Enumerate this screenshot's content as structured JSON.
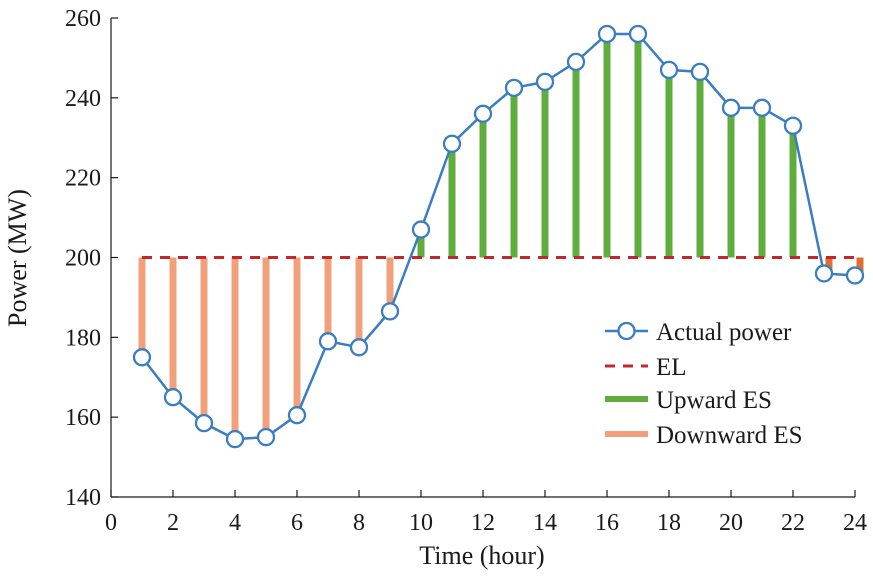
{
  "chart_data": {
    "type": "line",
    "xlabel": "Time (hour)",
    "ylabel": "Power (MW)",
    "xlim": [
      0,
      24
    ],
    "ylim": [
      140,
      260
    ],
    "xticks": [
      0,
      2,
      4,
      6,
      8,
      10,
      12,
      14,
      16,
      18,
      20,
      22,
      24
    ],
    "yticks": [
      140,
      160,
      180,
      200,
      220,
      240,
      260
    ],
    "grid": false,
    "legend_position": "right",
    "x": [
      1,
      2,
      3,
      4,
      5,
      6,
      7,
      8,
      9,
      10,
      11,
      12,
      13,
      14,
      15,
      16,
      17,
      18,
      19,
      20,
      21,
      22,
      23,
      24
    ],
    "series": [
      {
        "name": "Actual power",
        "kind": "line-markers",
        "color": "#3a7dc0",
        "values": [
          175,
          165,
          158.5,
          154.5,
          155,
          160.5,
          179,
          177.5,
          186.5,
          207,
          228.5,
          236,
          242.5,
          244,
          249,
          256,
          256,
          247,
          246.5,
          237.5,
          237.5,
          233,
          196,
          195.5
        ]
      },
      {
        "name": "EL",
        "kind": "dashed-line",
        "color": "#c0282d",
        "value": 200
      },
      {
        "name": "Upward ES",
        "kind": "bar",
        "color": "#5fad3c"
      },
      {
        "name": "Downward ES",
        "kind": "bar",
        "color": "#f0a07a"
      }
    ],
    "tail_bar_color": "#e0702e"
  }
}
